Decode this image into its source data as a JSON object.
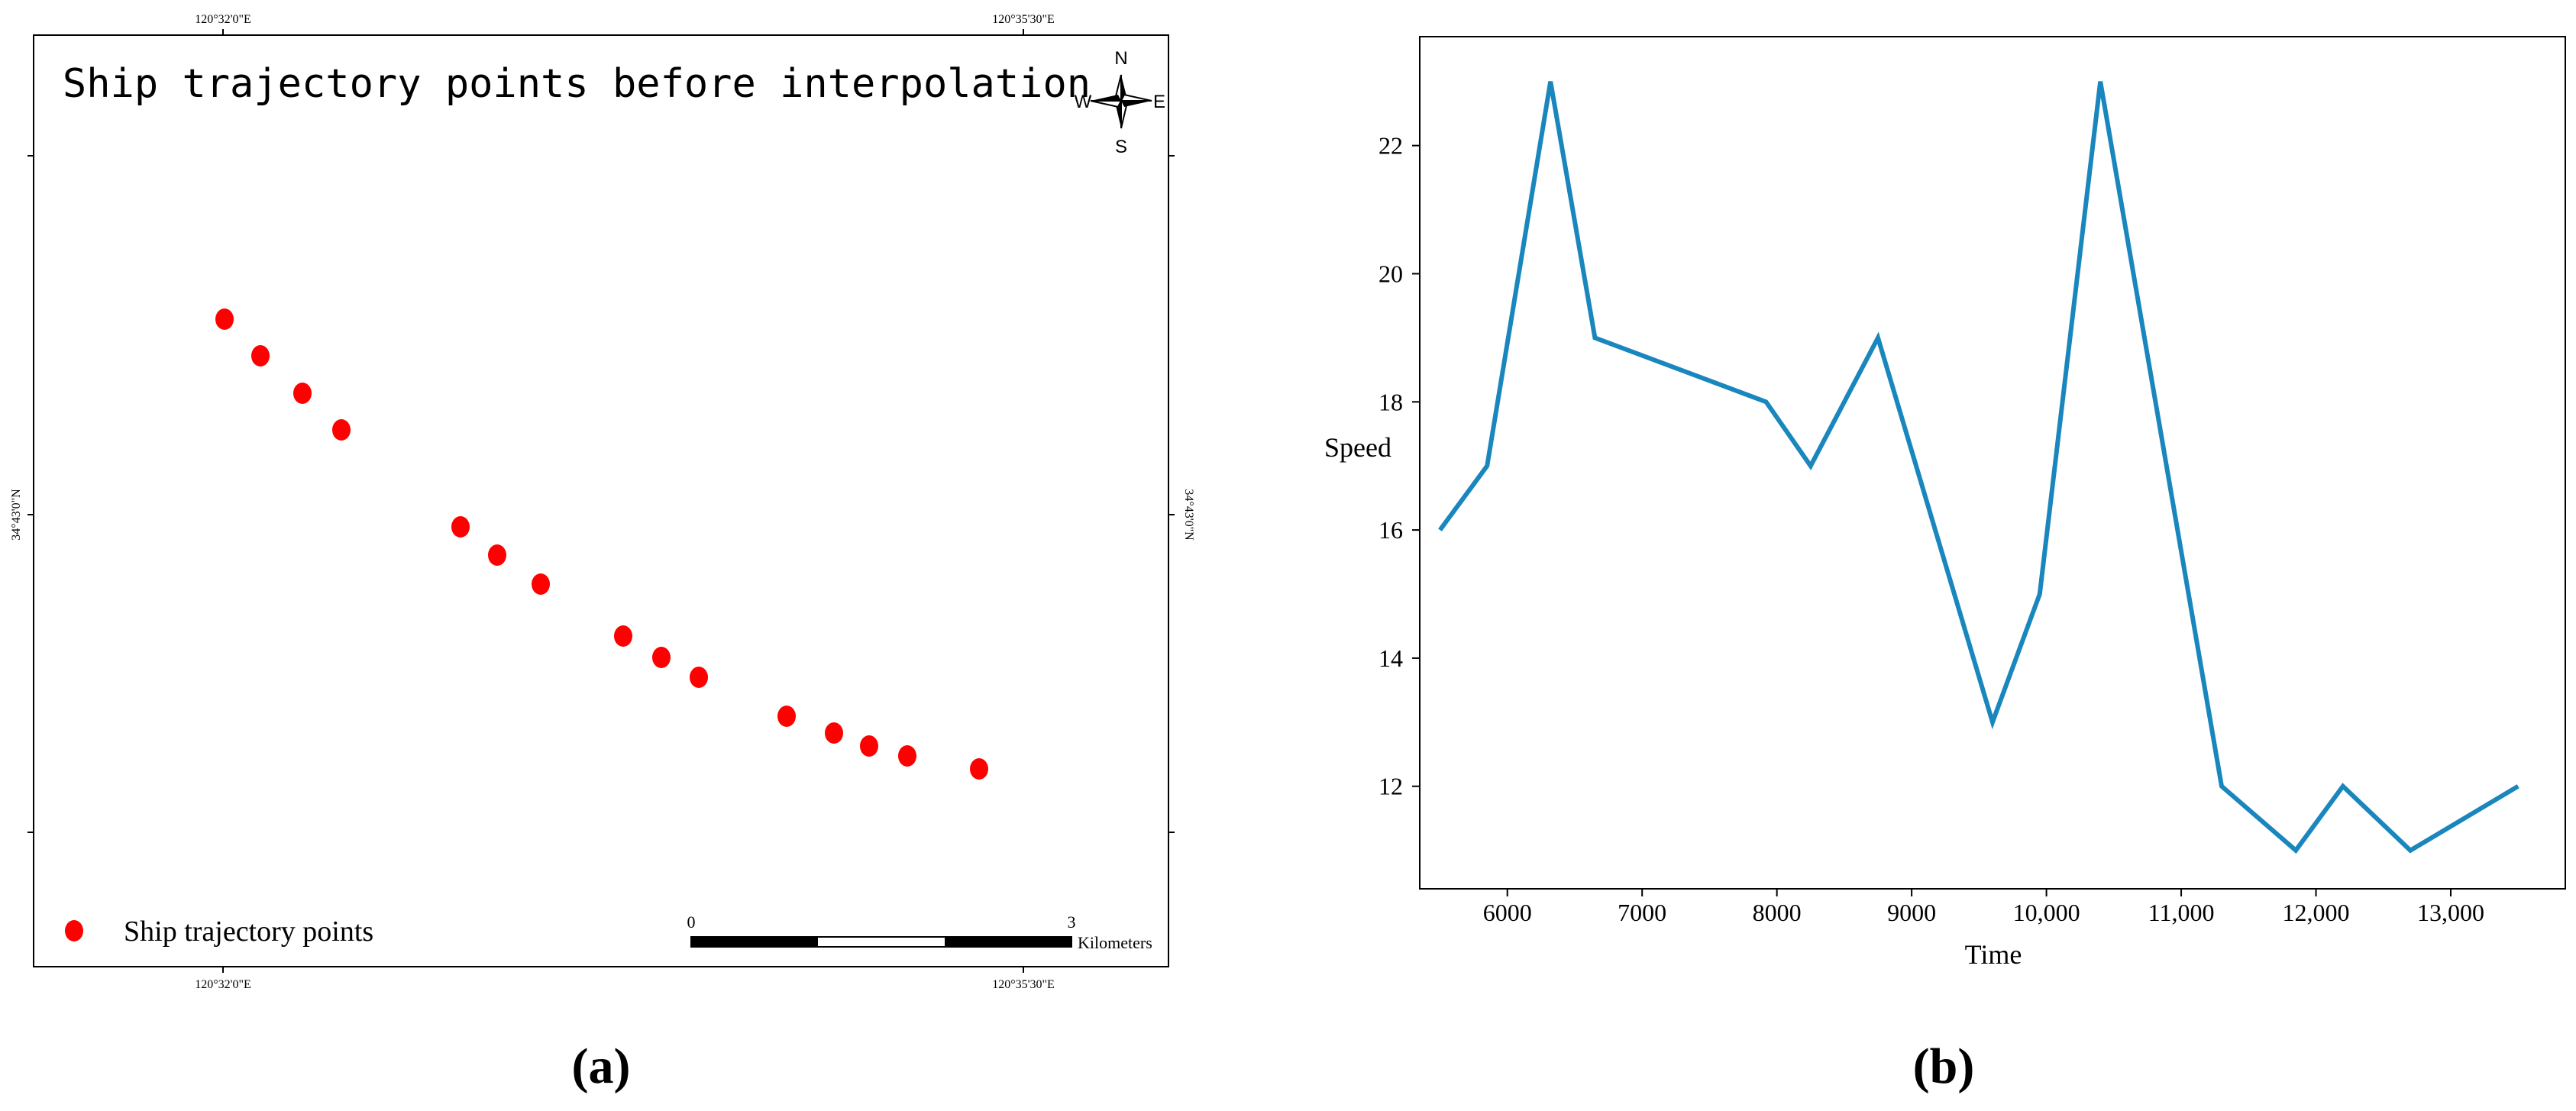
{
  "panel_labels": {
    "a": "(a)",
    "b": "(b)"
  },
  "map": {
    "title": "Ship trajectory points before interpolation",
    "coords": {
      "top_left": "120°32'0\"E",
      "top_right": "120°35'30\"E",
      "bottom_left": "120°32'0\"E",
      "bottom_right": "120°35'30\"E",
      "left_mid": "34°43'0\"N",
      "right_mid": "34°43'0\"N"
    },
    "compass": {
      "n": "N",
      "s": "S",
      "e": "E",
      "w": "W"
    },
    "legend": {
      "label": "Ship trajectory points",
      "color": "#ff0000"
    },
    "scalebar": {
      "start": "0",
      "end": "3",
      "unit": "Kilometers"
    },
    "point_color": "#ff0000"
  },
  "chart_data": {
    "type": "line",
    "xlabel": "Time",
    "ylabel": "Speed",
    "xlim": [
      5350,
      13850
    ],
    "ylim": [
      10.4,
      23.7
    ],
    "x_ticks": [
      6000,
      7000,
      8000,
      9000,
      10000,
      11000,
      12000,
      13000
    ],
    "x_tick_labels": [
      "6000",
      "7000",
      "8000",
      "9000",
      "10,000",
      "11,000",
      "12,000",
      "13,000"
    ],
    "y_ticks": [
      12,
      14,
      16,
      18,
      20,
      22
    ],
    "y_tick_labels": [
      "12",
      "14",
      "16",
      "18",
      "20",
      "22"
    ],
    "line_color": "#1a86be",
    "series": [
      {
        "x": [
          5500,
          5850,
          6320,
          6650,
          7920,
          8250,
          8750,
          9600,
          9950,
          10400,
          11300,
          11850,
          12200,
          12700,
          13500
        ],
        "y": [
          16,
          17,
          23,
          19,
          18,
          17,
          19,
          13,
          15,
          23,
          12,
          11,
          12,
          11,
          12
        ]
      }
    ]
  }
}
